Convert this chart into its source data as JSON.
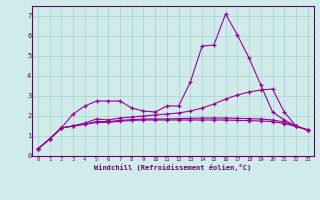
{
  "x": [
    0,
    1,
    2,
    3,
    4,
    5,
    6,
    7,
    8,
    9,
    10,
    11,
    12,
    13,
    14,
    15,
    16,
    17,
    18,
    19,
    20,
    21,
    22,
    23
  ],
  "line1": [
    0.35,
    0.85,
    1.4,
    2.1,
    2.5,
    2.75,
    2.75,
    2.75,
    2.4,
    2.25,
    2.2,
    2.5,
    2.5,
    3.7,
    5.5,
    5.55,
    7.1,
    6.05,
    4.9,
    3.55,
    2.2,
    1.8,
    1.5,
    1.3
  ],
  "line2": [
    0.35,
    0.85,
    1.4,
    1.5,
    1.65,
    1.85,
    1.8,
    1.9,
    1.95,
    2.0,
    2.05,
    2.1,
    2.15,
    2.25,
    2.4,
    2.6,
    2.85,
    3.05,
    3.2,
    3.3,
    3.35,
    2.2,
    1.5,
    1.3
  ],
  "line3": [
    0.35,
    0.85,
    1.4,
    1.5,
    1.6,
    1.72,
    1.72,
    1.78,
    1.82,
    1.85,
    1.85,
    1.85,
    1.87,
    1.88,
    1.9,
    1.9,
    1.9,
    1.88,
    1.87,
    1.85,
    1.8,
    1.7,
    1.5,
    1.3
  ],
  "line4": [
    0.35,
    0.85,
    1.4,
    1.5,
    1.58,
    1.68,
    1.68,
    1.74,
    1.78,
    1.8,
    1.8,
    1.8,
    1.8,
    1.8,
    1.8,
    1.8,
    1.8,
    1.78,
    1.77,
    1.75,
    1.72,
    1.62,
    1.48,
    1.3
  ],
  "bg_color": "#d0ecea",
  "line_color": "#990099",
  "grid_color": "#aacfcf",
  "axis_color": "#660066",
  "xlabel": "Windchill (Refroidissement éolien,°C)",
  "ylim": [
    0,
    7.5
  ],
  "xlim": [
    -0.5,
    23.5
  ],
  "yticks": [
    0,
    1,
    2,
    3,
    4,
    5,
    6,
    7
  ],
  "xticks": [
    0,
    1,
    2,
    3,
    4,
    5,
    6,
    7,
    8,
    9,
    10,
    11,
    12,
    13,
    14,
    15,
    16,
    17,
    18,
    19,
    20,
    21,
    22,
    23
  ]
}
